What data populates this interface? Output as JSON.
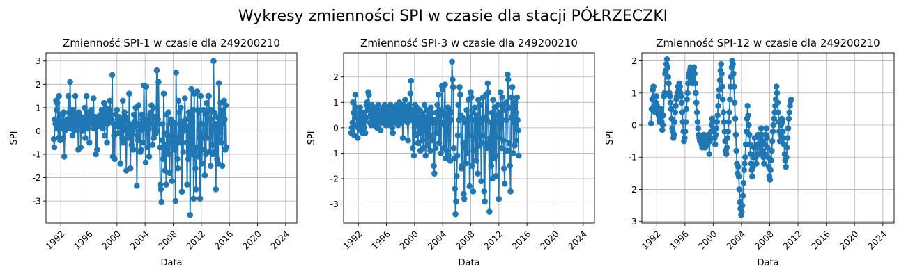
{
  "figure_title": "Wykresy zmienności SPI w czasie dla stacji PÓŁRZECZKI",
  "colors": {
    "series": "#1f77b4",
    "grid": "#b0b0b0"
  },
  "chart_data": [
    {
      "type": "line",
      "title": "Zmienność SPI-1 w czasie dla 249200210",
      "xlabel": "Data",
      "ylabel": "SPI",
      "xlim": [
        1989.9,
        2025.6
      ],
      "ylim": [
        -3.95,
        3.35
      ],
      "xticks": [
        "1992",
        "1996",
        "2000",
        "2004",
        "2008",
        "2012",
        "2016",
        "2020",
        "2024"
      ],
      "yticks": [
        "-3",
        "-2",
        "-1",
        "0",
        "1",
        "2",
        "3"
      ],
      "grid": true,
      "x_start": 1991.0,
      "x_step": 0.0833,
      "series": [
        {
          "values": [
            -0.35,
            -0.7,
            0.5,
            0.3,
            1.3,
            0.9,
            1.2,
            0.1,
            -0.3,
            1.5,
            0.1,
            -0.4,
            0.7,
            0.2,
            0.2,
            0.7,
            -0.3,
            0.8,
            -1.1,
            0.0,
            0.4,
            0.1,
            0.1,
            0.5,
            0.3,
            1.5,
            0.8,
            0.3,
            2.1,
            0.5,
            0.1,
            0.9,
            -0.2,
            0.9,
            0.8,
            0.0,
            0.3,
            1.5,
            0.5,
            0.1,
            0.7,
            0.6,
            -0.8,
            0.8,
            0.3,
            0.6,
            -0.7,
            0.6,
            0.2,
            0.0,
            0.1,
            0.5,
            0.3,
            1.0,
            -0.3,
            0.4,
            1.5,
            0.5,
            0.1,
            0.8,
            0.3,
            -0.5,
            0.7,
            0.3,
            0.9,
            0.4,
            0.3,
            0.5,
            1.4,
            0.1,
            0.3,
            0.6,
            -1.0,
            0.2,
            -0.8,
            0.6,
            0.4,
            0.2,
            0.3,
            0.5,
            0.7,
            0.3,
            0.9,
            0.7,
            0.1,
            0.4,
            1.2,
            -0.2,
            0.6,
            1.0,
            0.8,
            -0.5,
            0.3,
            0.5,
            0.4,
            0.9,
            1.3,
            0.7,
            0.4,
            0.5,
            2.4,
            -1.1,
            0.3,
            -0.2,
            -1.2,
            0.2,
            0.7,
            0.3,
            0.9,
            0.4,
            -0.1,
            0.2,
            0.6,
            0.4,
            -1.4,
            -0.1,
            0.5,
            -0.3,
            1.3,
            -0.5,
            0.2,
            0.8,
            0.6,
            0.1,
            -1.7,
            0.0,
            0.4,
            -0.2,
            -0.3,
            1.6,
            0.3,
            -1.6,
            0.2,
            -0.6,
            -0.1,
            0.0,
            -0.8,
            0.7,
            0.4,
            0.2,
            1.0,
            0.3,
            -2.35,
            -0.2,
            -0.4,
            1.1,
            0.3,
            0.0,
            -0.9,
            -0.8,
            0.7,
            0.1,
            0.5,
            -0.5,
            1.95,
            0.4,
            0.1,
            -1.35,
            1.9,
            0.5,
            -0.7,
            0.5,
            0.1,
            -1.1,
            0.3,
            0.7,
            0.8,
            1.1,
            0.3,
            -0.6,
            1.0,
            -0.3,
            0.6,
            0.2,
            -0.1,
            0.6,
            2.6,
            0.0,
            0.5,
            2.1,
            0.3,
            -0.7,
            -2.3,
            -2.5,
            -3.05,
            -0.4,
            0.3,
            -1.2,
            1.6,
            -0.1,
            -1.7,
            -0.6,
            -2.3,
            0.7,
            -0.8,
            -0.2,
            0.8,
            -1.0,
            -1.8,
            -0.2,
            0.5,
            0.3,
            -2.15,
            0.4,
            -0.5,
            -0.6,
            -0.8,
            0.3,
            -3.0,
            2.5,
            -0.3,
            -1.2,
            -1.6,
            1.3,
            0.8,
            -0.5,
            -0.2,
            1.0,
            0.4,
            -2.6,
            0.2,
            -0.9,
            0.0,
            0.3,
            1.4,
            0.1,
            0.5,
            -0.5,
            -2.3,
            0.2,
            -1.2,
            0.8,
            0.6,
            -3.6,
            -0.5,
            1.8,
            -1.0,
            0.4,
            0.9,
            -2.9,
            1.6,
            -0.9,
            -1.6,
            -2.5,
            -0.7,
            1.7,
            0.9,
            -1.1,
            0.8,
            -0.3,
            -2.9,
            1.5,
            0.3,
            -1.4,
            -0.3,
            0.3,
            0.9,
            -0.8,
            -1.9,
            0.7,
            -1.0,
            1.2,
            -0.3,
            0.5,
            1.5,
            1.5,
            -0.9,
            0.5,
            -1.5,
            0.9,
            0.2,
            -0.6,
            -1.0,
            3.0,
            0.8,
            -0.9,
            0.3,
            -2.5,
            0.3,
            -1.2,
            0.6,
            -1.4,
            2.05,
            -0.4,
            0.1,
            1.2,
            -0.5,
            0.7,
            -1.5,
            0.3,
            0.9,
            1.3,
            0.5,
            -0.8,
            1.1,
            -0.7
          ]
        }
      ]
    },
    {
      "type": "line",
      "title": "Zmienność SPI-3 w czasie dla 249200210",
      "xlabel": "Data",
      "ylabel": "SPI",
      "xlim": [
        1989.9,
        2025.6
      ],
      "ylim": [
        -3.75,
        2.95
      ],
      "xticks": [
        "1992",
        "1996",
        "2000",
        "2004",
        "2008",
        "2012",
        "2016",
        "2020",
        "2024"
      ],
      "yticks": [
        "-3",
        "-2",
        "-1",
        "0",
        "1",
        "2"
      ],
      "grid": true,
      "x_start": 1991.0,
      "x_step": 0.0833,
      "series": [
        {
          "values": [
            -0.2,
            0.0,
            0.2,
            1.0,
            0.6,
            -0.3,
            0.1,
            1.3,
            0.8,
            0.4,
            0.1,
            -0.4,
            0.0,
            0.3,
            0.6,
            0.8,
            -0.1,
            0.2,
            0.5,
            -0.2,
            0.6,
            0.4,
            0.0,
            0.3,
            -0.2,
            0.4,
            0.9,
            1.0,
            0.7,
            1.4,
            1.3,
            0.8,
            0.2,
            0.5,
            0.1,
            0.9,
            0.7,
            0.3,
            0.6,
            0.1,
            0.4,
            0.5,
            0.2,
            0.8,
            0.0,
            0.3,
            0.9,
            0.6,
            0.4,
            0.2,
            -0.1,
            0.3,
            0.7,
            0.5,
            0.2,
            0.8,
            0.4,
            0.9,
            0.3,
            0.1,
            0.6,
            0.8,
            0.5,
            0.2,
            0.7,
            0.4,
            0.1,
            0.9,
            0.6,
            0.3,
            0.0,
            -0.2,
            0.4,
            0.7,
            0.8,
            0.5,
            0.2,
            0.6,
            0.9,
            0.3,
            0.1,
            0.7,
            1.0,
            0.4,
            0.6,
            0.8,
            0.2,
            0.5,
            -0.4,
            0.9,
            0.3,
            0.7,
            1.1,
            0.6,
            0.8,
            0.4,
            0.2,
            -0.5,
            0.6,
            0.9,
            0.3,
            1.35,
            1.85,
            0.4,
            0.7,
            -0.8,
            0.5,
            -1.1,
            0.2,
            0.9,
            -0.3,
            0.6,
            0.8,
            0.1,
            -0.6,
            0.4,
            -0.2,
            0.7,
            -0.9,
            0.3,
            0.6,
            -0.5,
            0.5,
            -0.8,
            0.2,
            0.9,
            -0.1,
            -1.1,
            0.4,
            0.7,
            0.3,
            -0.7,
            0.1,
            0.5,
            -0.3,
            -0.9,
            0.8,
            0.3,
            0.6,
            -0.5,
            0.2,
            -1.5,
            -1.8,
            0.3,
            -0.8,
            0.6,
            -0.2,
            0.9,
            0.4,
            1.3,
            -0.6,
            0.1,
            0.7,
            -1.0,
            0.5,
            1.65,
            1.5,
            0.2,
            -0.8,
            0.6,
            1.7,
            -1.2,
            0.3,
            -0.9,
            0.5,
            0.8,
            -1.1,
            0.2,
            0.7,
            -1.3,
            0.3,
            0.6,
            2.6,
            1.9,
            1.6,
            -0.8,
            -1.2,
            -2.4,
            -3.4,
            -2.9,
            -1.9,
            -1.1,
            -0.3,
            0.9,
            0.3,
            1.6,
            1.3,
            0.5,
            -1.6,
            -1.5,
            0.4,
            -0.6,
            -2.6,
            -2.8,
            -0.8,
            0.2,
            -1.4,
            0.7,
            -1.0,
            0.3,
            1.1,
            -0.3,
            -2.3,
            0.4,
            1.4,
            1.2,
            -1.5,
            0.6,
            -2.5,
            -0.9,
            0.3,
            0.8,
            -0.4,
            -1.3,
            0.5,
            0.2,
            -1.8,
            1.1,
            0.4,
            -0.7,
            0.9,
            0.2,
            -2.1,
            -0.6,
            0.3,
            1.2,
            -0.3,
            -2.5,
            -2.9,
            0.4,
            1.3,
            -0.8,
            0.3,
            1.75,
            1.4,
            -0.6,
            -3.3,
            -0.4,
            0.2,
            -1.5,
            0.6,
            -2.0,
            1.1,
            0.3,
            -1.2,
            0.8,
            -0.3,
            -1.9,
            -1.1,
            0.5,
            0.9,
            0.2,
            -2.8,
            0.6,
            -0.4,
            1.4,
            0.3,
            -0.8,
            1.2,
            0.9,
            -0.5,
            -1.6,
            -2.2,
            0.7,
            0.3,
            1.0,
            -0.9,
            2.1,
            1.9,
            0.8,
            -0.6,
            -1.5,
            -2.5,
            1.2,
            0.4,
            1.6,
            0.8,
            -1.0,
            0.2,
            -0.7,
            1.0,
            0.6,
            -0.5,
            1.2,
            0.3,
            -0.1,
            -1.1
          ]
        }
      ]
    },
    {
      "type": "line",
      "title": "Zmienność SPI-12 w czasie dla 249200210",
      "xlabel": "Data",
      "ylabel": "SPI",
      "xlim": [
        1989.9,
        2025.6
      ],
      "ylim": [
        -3.05,
        2.25
      ],
      "xticks": [
        "1992",
        "1996",
        "2000",
        "2004",
        "2008",
        "2012",
        "2016",
        "2020",
        "2024"
      ],
      "yticks": [
        "-3",
        "-2",
        "-1",
        "0",
        "1",
        "2"
      ],
      "grid": true,
      "x_start": 1991.2,
      "x_step": 0.0833,
      "series": [
        {
          "values": [
            0.05,
            0.5,
            0.8,
            1.1,
            1.2,
            0.9,
            0.6,
            0.4,
            0.7,
            0.9,
            0.6,
            0.5,
            0.4,
            0.3,
            0.1,
            0.2,
            0.4,
            0.5,
            0.1,
            -0.15,
            0.0,
            0.3,
            0.9,
            1.0,
            1.6,
            1.7,
            1.9,
            2.05,
            1.8,
            1.5,
            1.3,
            1.0,
            0.9,
            0.7,
            0.5,
            0.2,
            -0.1,
            -0.2,
            -0.4,
            -0.3,
            0.1,
            0.4,
            0.6,
            0.8,
            0.9,
            1.0,
            1.2,
            1.1,
            1.3,
            1.2,
            1.0,
            0.9,
            0.7,
            0.4,
            0.1,
            -0.2,
            -0.5,
            -0.4,
            -0.2,
            0.1,
            0.5,
            0.8,
            1.0,
            1.3,
            1.5,
            1.6,
            1.7,
            1.8,
            1.6,
            1.4,
            1.3,
            1.5,
            1.7,
            1.8,
            1.6,
            1.3,
            1.0,
            0.7,
            0.4,
            0.1,
            -0.1,
            -0.3,
            -0.4,
            -0.5,
            -0.5,
            -0.4,
            -0.6,
            -0.7,
            -0.5,
            -0.4,
            -0.3,
            -0.6,
            -0.7,
            -0.5,
            -0.4,
            -0.6,
            -0.5,
            -0.4,
            -0.3,
            -0.9,
            -0.5,
            -0.4,
            -0.2,
            0.0,
            0.2,
            0.1,
            -0.1,
            -0.2,
            -0.4,
            -0.6,
            -0.3,
            -0.1,
            0.1,
            0.3,
            0.6,
            0.9,
            1.1,
            1.4,
            1.7,
            1.9,
            1.6,
            1.2,
            0.8,
            0.4,
            0.1,
            -0.2,
            -0.5,
            -0.8,
            -0.9,
            -0.7,
            -0.4,
            -0.2,
            0.1,
            0.4,
            0.8,
            1.2,
            1.5,
            1.8,
            2.0,
            1.9,
            1.6,
            1.2,
            0.7,
            0.2,
            -0.3,
            -0.8,
            -1.2,
            -1.5,
            -1.3,
            -1.6,
            -2.0,
            -2.4,
            -2.6,
            -2.8,
            -2.7,
            -2.5,
            -2.2,
            -1.8,
            -1.4,
            -1.2,
            -1.0,
            -0.6,
            -0.2,
            0.2,
            0.6,
            0.3,
            0.0,
            -0.3,
            -0.6,
            -0.9,
            -1.2,
            -1.4,
            -1.6,
            -1.3,
            -1.0,
            -0.7,
            -0.4,
            -0.7,
            -1.0,
            -1.2,
            -0.9,
            -0.6,
            -0.3,
            -0.6,
            -0.9,
            -0.7,
            -0.4,
            -0.1,
            -0.3,
            -0.5,
            -0.8,
            -1.0,
            -1.2,
            -0.9,
            -0.6,
            -0.3,
            -0.1,
            -0.4,
            -0.7,
            -1.0,
            -1.3,
            -1.6,
            -1.7,
            -1.4,
            -1.1,
            -0.8,
            -0.5,
            -0.2,
            0.0,
            0.2,
            0.4,
            0.6,
            0.8,
            1.2,
            1.0,
            0.7,
            0.4,
            0.1,
            -0.2,
            -0.5,
            -0.3,
            0.0,
            0.2,
            0.1,
            -0.2,
            -0.4,
            -0.6,
            -0.9,
            -1.1,
            -1.3,
            -1.0,
            -0.7,
            -0.4,
            -0.1,
            0.2,
            0.4,
            0.6,
            0.75,
            0.8
          ]
        }
      ]
    }
  ]
}
